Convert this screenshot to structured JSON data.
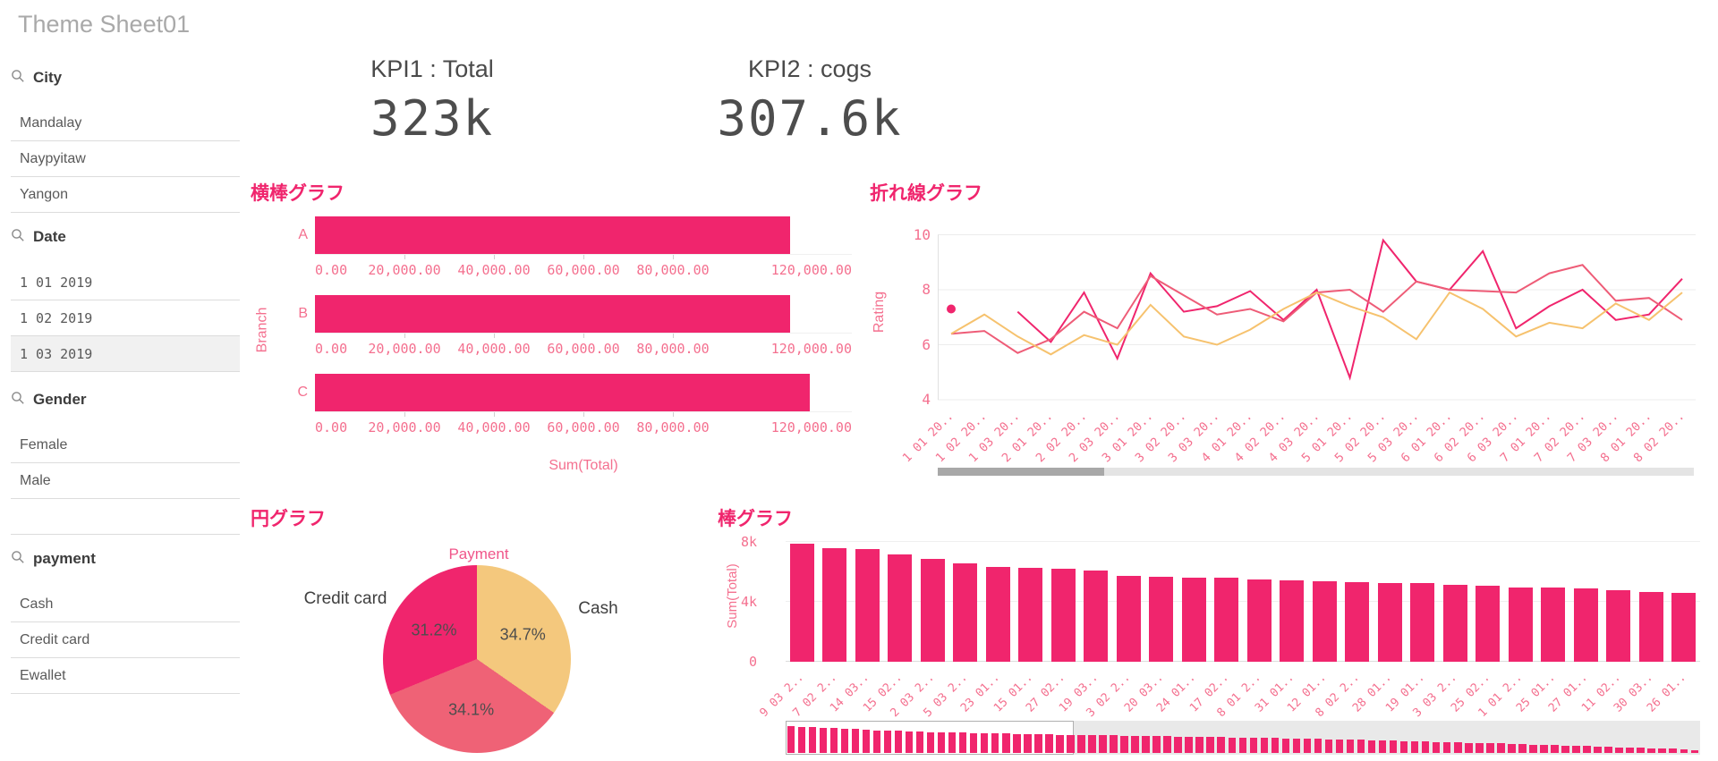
{
  "page": {
    "title": "Theme Sheet01"
  },
  "colors": {
    "accent": "#f0256d",
    "axis_text": "#f4708f",
    "text_dark": "#404040",
    "text_mid": "#595959",
    "sheet_title_gray": "#a9a9a9",
    "line_rose": "#ee5c77",
    "line_orange": "#f6c26e",
    "pie_cash": "#f4c87d",
    "pie_bottom": "#ef6276",
    "grid": "#ececec",
    "scroll_track": "#e4e4e4",
    "scroll_thumb": "#a8a8a8"
  },
  "sidebar": {
    "filters": [
      {
        "label": "City",
        "icon": "search-icon",
        "mono": false,
        "trailing_blank": false,
        "items": [
          {
            "label": "Mandalay",
            "selected": false
          },
          {
            "label": "Naypyitaw",
            "selected": false
          },
          {
            "label": "Yangon",
            "selected": false
          }
        ]
      },
      {
        "label": "Date",
        "icon": "search-icon",
        "mono": true,
        "trailing_blank": false,
        "items": [
          {
            "label": "1 01 2019",
            "selected": false
          },
          {
            "label": "1 02 2019",
            "selected": false
          },
          {
            "label": "1 03 2019",
            "selected": true
          }
        ]
      },
      {
        "label": "Gender",
        "icon": "search-icon",
        "mono": false,
        "trailing_blank": true,
        "items": [
          {
            "label": "Female",
            "selected": false
          },
          {
            "label": "Male",
            "selected": false
          }
        ]
      },
      {
        "label": "payment",
        "icon": "search-icon",
        "mono": false,
        "trailing_blank": false,
        "items": [
          {
            "label": "Cash",
            "selected": false
          },
          {
            "label": "Credit card",
            "selected": false
          },
          {
            "label": "Ewallet",
            "selected": false
          }
        ]
      }
    ]
  },
  "kpis": [
    {
      "title": "KPI1 : Total",
      "value": "323k"
    },
    {
      "title": "KPI2 : cogs",
      "value": "307.6k"
    }
  ],
  "chart_data": [
    {
      "id": "hbar",
      "type": "bar",
      "orientation": "horizontal",
      "title": "横棒グラフ",
      "xlabel": "Sum(Total)",
      "ylabel": "Branch",
      "categories": [
        "A",
        "B",
        "C"
      ],
      "values": [
        106200,
        106198,
        110569
      ],
      "xlim": [
        0,
        120000
      ],
      "tick_labels": [
        "0.00",
        "20,000.00",
        "40,000.00",
        "60,000.00",
        "80,000.00",
        "120,000.00"
      ],
      "tick_values": [
        0,
        20000,
        40000,
        60000,
        80000,
        120000
      ],
      "facet_axes": true
    },
    {
      "id": "line",
      "type": "line",
      "title": "折れ線グラフ",
      "ylabel": "Rating",
      "ylim": [
        4,
        10
      ],
      "yticks": [
        10,
        8,
        6,
        4
      ],
      "grid": true,
      "legend": "none",
      "x": [
        "1 01 20..",
        "1 02 20..",
        "1 03 20..",
        "2 01 20..",
        "2 02 20..",
        "2 03 20..",
        "3 01 20..",
        "3 02 20..",
        "3 03 20..",
        "4 01 20..",
        "4 02 20..",
        "4 03 20..",
        "5 01 20..",
        "5 02 20..",
        "5 03 20..",
        "6 01 20..",
        "6 02 20..",
        "6 03 20..",
        "7 01 20..",
        "7 02 20..",
        "7 03 20..",
        "8 01 20..",
        "8 02 20.."
      ],
      "series": [
        {
          "name": "series-magenta",
          "color": "#f0256d",
          "values": [
            7.3,
            null,
            7.2,
            6.1,
            7.9,
            5.5,
            8.6,
            7.2,
            7.4,
            7.95,
            6.9,
            8.0,
            4.8,
            9.8,
            8.3,
            8.0,
            9.4,
            6.6,
            7.4,
            8.0,
            6.9,
            7.1,
            8.4
          ]
        },
        {
          "name": "series-rose",
          "color": "#ee5c77",
          "values": [
            6.4,
            6.5,
            5.7,
            6.2,
            7.2,
            6.6,
            8.5,
            7.8,
            7.1,
            7.3,
            6.85,
            7.9,
            8.0,
            7.2,
            8.3,
            8.0,
            7.95,
            7.9,
            8.6,
            8.9,
            7.6,
            7.7,
            6.9
          ]
        },
        {
          "name": "series-orange",
          "color": "#f6c26e",
          "values": [
            6.4,
            7.1,
            6.3,
            5.65,
            6.35,
            6.0,
            7.45,
            6.3,
            6.0,
            6.55,
            7.3,
            7.9,
            7.4,
            7.0,
            6.2,
            7.9,
            7.3,
            6.3,
            6.8,
            6.6,
            7.5,
            6.9,
            7.9
          ]
        }
      ],
      "scrollbar": {
        "thumb_fraction": 0.22,
        "thumb_start": 0
      }
    },
    {
      "id": "pie",
      "type": "pie",
      "title": "円グラフ",
      "subtitle": "Payment",
      "slices": [
        {
          "label": "Cash",
          "pct": 34.7,
          "pct_label": "34.7%",
          "color": "#f4c87d",
          "label_visible": true
        },
        {
          "label": "",
          "pct": 34.1,
          "pct_label": "34.1%",
          "color": "#ef6276",
          "label_visible": false
        },
        {
          "label": "Credit card",
          "pct": 31.2,
          "pct_label": "31.2%",
          "color": "#f0256d",
          "label_visible": true
        }
      ]
    },
    {
      "id": "vbar",
      "type": "bar",
      "orientation": "vertical",
      "title": "棒グラフ",
      "ylabel": "Sum(Total)",
      "ytick_labels": [
        "8k",
        "4k",
        "0"
      ],
      "ytick_values": [
        8,
        4,
        0
      ],
      "ylim": [
        0,
        8.2
      ],
      "categories": [
        "9 03 2..",
        "7 02 2..",
        "14 03..",
        "15 02..",
        "2 03 2..",
        "5 03 2..",
        "23 01..",
        "15 01..",
        "27 02..",
        "19 03..",
        "3 02 2..",
        "20 03..",
        "24 01..",
        "17 02..",
        "8 01 2..",
        "31 01..",
        "12 01..",
        "8 02 2..",
        "28 01..",
        "19 01..",
        "3 03 2..",
        "25 02..",
        "1 01 2..",
        "25 01..",
        "27 01..",
        "11 02..",
        "30 03..",
        "26 01.."
      ],
      "values": [
        7.9,
        7.6,
        7.55,
        7.2,
        6.9,
        6.6,
        6.35,
        6.3,
        6.25,
        6.1,
        5.75,
        5.7,
        5.65,
        5.6,
        5.5,
        5.45,
        5.4,
        5.35,
        5.3,
        5.25,
        5.15,
        5.1,
        5.0,
        4.95,
        4.9,
        4.8,
        4.7,
        4.6
      ],
      "navigator": {
        "window_fraction": 0.315,
        "mini_values": [
          7.9,
          7.75,
          7.6,
          7.45,
          7.3,
          7.15,
          7.0,
          6.85,
          6.7,
          6.6,
          6.5,
          6.4,
          6.3,
          6.2,
          6.1,
          6.0,
          5.95,
          5.9,
          5.8,
          5.75,
          5.7,
          5.6,
          5.55,
          5.5,
          5.45,
          5.4,
          5.35,
          5.3,
          5.25,
          5.2,
          5.15,
          5.1,
          5.05,
          5.0,
          4.95,
          4.9,
          4.85,
          4.8,
          4.75,
          4.7,
          4.65,
          4.6,
          4.55,
          4.5,
          4.45,
          4.4,
          4.3,
          4.25,
          4.2,
          4.1,
          4.05,
          4.0,
          3.9,
          3.85,
          3.8,
          3.7,
          3.6,
          3.55,
          3.5,
          3.4,
          3.3,
          3.2,
          3.1,
          3.0,
          2.95,
          2.9,
          2.8,
          2.7,
          2.6,
          2.5,
          2.4,
          2.3,
          2.2,
          2.1,
          2.0,
          1.9,
          1.8,
          1.7,
          1.6,
          1.5,
          1.4,
          1.3,
          1.2,
          1.0,
          0.8
        ]
      }
    }
  ]
}
